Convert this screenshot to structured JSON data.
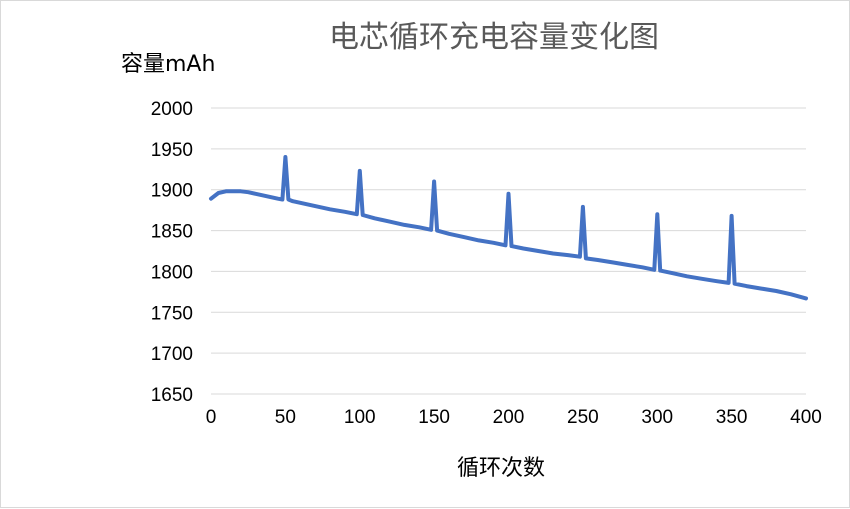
{
  "chart_data": {
    "type": "line",
    "title": "电芯循环充电容量变化图",
    "xlabel": "循环次数",
    "ylabel": "容量mAh",
    "xlim": [
      0,
      400
    ],
    "ylim": [
      1650,
      2000
    ],
    "xticks": [
      "0",
      "50",
      "100",
      "150",
      "200",
      "250",
      "300",
      "350",
      "400"
    ],
    "yticks": [
      "1650",
      "1700",
      "1750",
      "1800",
      "1850",
      "1900",
      "1950",
      "2000"
    ],
    "grid": true,
    "legend": "none",
    "series_color": "#4472c4",
    "series": [
      {
        "x": [
          0,
          5,
          10,
          15,
          20,
          25,
          30,
          35,
          40,
          45,
          48,
          50,
          52,
          55,
          60,
          70,
          80,
          90,
          98,
          100,
          102,
          110,
          120,
          130,
          140,
          148,
          150,
          152,
          160,
          170,
          180,
          190,
          198,
          200,
          202,
          210,
          220,
          230,
          240,
          248,
          250,
          252,
          260,
          270,
          280,
          290,
          298,
          300,
          302,
          310,
          320,
          330,
          340,
          348,
          350,
          352,
          360,
          370,
          380,
          390,
          400
        ],
        "values": [
          1889,
          1896,
          1898,
          1898,
          1898,
          1897,
          1895,
          1893,
          1891,
          1889,
          1888,
          1940,
          1888,
          1886,
          1884,
          1880,
          1876,
          1873,
          1870,
          1923,
          1869,
          1865,
          1861,
          1857,
          1854,
          1851,
          1910,
          1850,
          1846,
          1842,
          1838,
          1835,
          1832,
          1895,
          1831,
          1828,
          1825,
          1822,
          1820,
          1818,
          1879,
          1816,
          1814,
          1811,
          1808,
          1805,
          1802,
          1870,
          1801,
          1798,
          1794,
          1791,
          1788,
          1786,
          1868,
          1785,
          1782,
          1779,
          1776,
          1772,
          1767
        ]
      }
    ]
  }
}
